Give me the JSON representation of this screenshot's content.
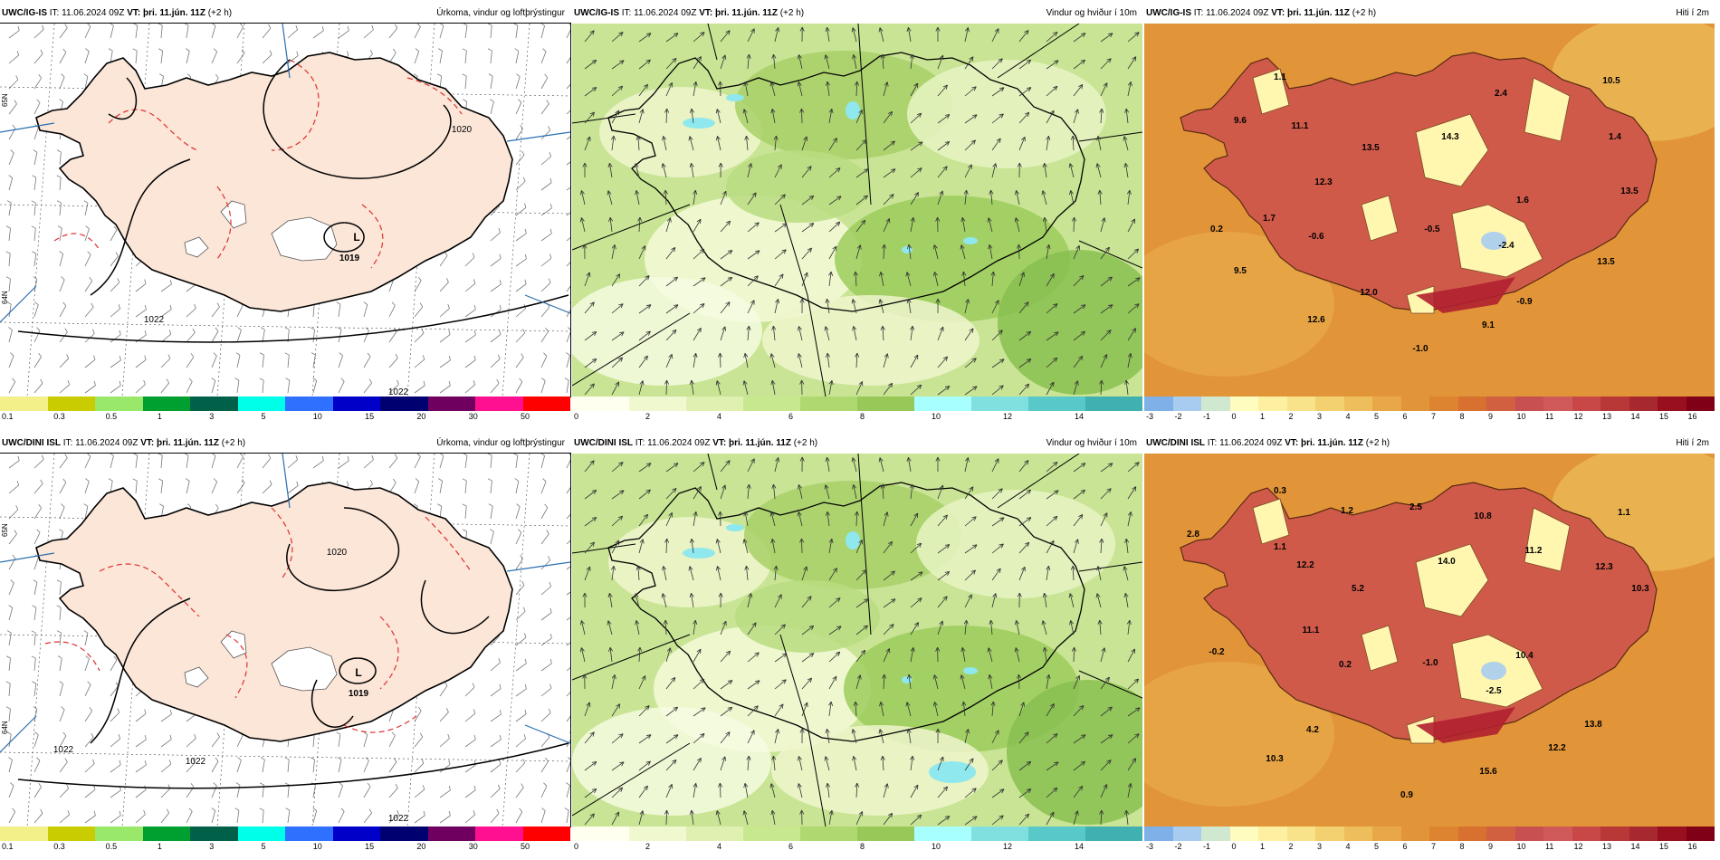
{
  "panels": [
    {
      "model": "UWC/IG-IS",
      "it_label": "IT:",
      "it_time": "11.06.2024 09Z",
      "vt_label": "VT:",
      "vt_time": "þri. 11.jún. 11Z",
      "lead": "(+2 h)",
      "field": "Úrkoma, vindur og loftþrýstingur",
      "map_labels": [
        "1020",
        "1019",
        "L",
        "1022",
        "1022"
      ],
      "lat_labels": [
        "65N",
        "64N"
      ],
      "legend": [
        "0.1",
        "0.3",
        "0.5",
        "1",
        "3",
        "5",
        "10",
        "15",
        "20",
        "30",
        "50"
      ]
    },
    {
      "model": "UWC/IG-IS",
      "it_label": "IT:",
      "it_time": "11.06.2024 09Z",
      "vt_label": "VT:",
      "vt_time": "þri. 11.jún. 11Z",
      "lead": "(+2 h)",
      "field": "Vindur og hviður í 10m",
      "legend": [
        "0",
        "2",
        "4",
        "6",
        "8",
        "10",
        "12",
        "14"
      ]
    },
    {
      "model": "UWC/IG-IS",
      "it_label": "IT:",
      "it_time": "11.06.2024 09Z",
      "vt_label": "VT:",
      "vt_time": "þri. 11.jún. 11Z",
      "lead": "(+2 h)",
      "field": "Hiti í 2m",
      "temps": [
        "1.1",
        "9.6",
        "11.1",
        "2.4",
        "10.5",
        "13.5",
        "14.3",
        "1.4",
        "12.3",
        "13.5",
        "1.7",
        "0.2",
        "1.6",
        "-0.6",
        "-0.5",
        "-2.4",
        "9.5",
        "13.5",
        "12.0",
        "-0.9",
        "12.6",
        "9.1",
        "-1.0"
      ],
      "legend": [
        "-3",
        "-2",
        "-1",
        "0",
        "1",
        "2",
        "3",
        "4",
        "5",
        "6",
        "7",
        "8",
        "9",
        "10",
        "11",
        "12",
        "13",
        "14",
        "15",
        "16"
      ]
    },
    {
      "model": "UWC/DINI ISL",
      "it_label": "IT:",
      "it_time": "11.06.2024 09Z",
      "vt_label": "VT:",
      "vt_time": "þri. 11.jún. 11Z",
      "lead": "(+2 h)",
      "field": "Úrkoma, vindur og loftþrýstingur",
      "map_labels": [
        "1020",
        "1019",
        "L",
        "1022",
        "1022",
        "1022"
      ],
      "lat_labels": [
        "65N",
        "64N"
      ],
      "legend": [
        "0.1",
        "0.3",
        "0.5",
        "1",
        "3",
        "5",
        "10",
        "15",
        "20",
        "30",
        "50"
      ]
    },
    {
      "model": "UWC/DINI ISL",
      "it_label": "IT:",
      "it_time": "11.06.2024 09Z",
      "vt_label": "VT:",
      "vt_time": "þri. 11.jún. 11Z",
      "lead": "(+2 h)",
      "field": "Vindur og hviður í 10m",
      "legend": [
        "0",
        "2",
        "4",
        "6",
        "8",
        "10",
        "12",
        "14"
      ]
    },
    {
      "model": "UWC/DINI ISL",
      "it_label": "IT:",
      "it_time": "11.06.2024 09Z",
      "vt_label": "VT:",
      "vt_time": "þri. 11.jún. 11Z",
      "lead": "(+2 h)",
      "field": "Hiti í 2m",
      "temps": [
        "0.3",
        "2.8",
        "1.1",
        "1.2",
        "2.5",
        "10.8",
        "1.1",
        "12.2",
        "14.0",
        "11.2",
        "12.3",
        "10.3",
        "5.2",
        "11.1",
        "-0.2",
        "0.2",
        "-1.0",
        "10.4",
        "-2.5",
        "4.2",
        "13.8",
        "12.2",
        "10.3",
        "15.6",
        "0.9"
      ],
      "legend": [
        "-3",
        "-2",
        "-1",
        "0",
        "1",
        "2",
        "3",
        "4",
        "5",
        "6",
        "7",
        "8",
        "9",
        "10",
        "11",
        "12",
        "13",
        "14",
        "15",
        "16"
      ]
    }
  ],
  "colors": {
    "precip_legend": [
      "#f3f08a",
      "#c8cc00",
      "#9ae86a",
      "#00a030",
      "#006048",
      "#00ffe8",
      "#3070ff",
      "#0000c8",
      "#000070",
      "#700060",
      "#ff1090",
      "#ff0000"
    ],
    "wind_legend": [
      "#fffff0",
      "#f0f8d0",
      "#dff0b0",
      "#c8e890",
      "#b0d870",
      "#98c858",
      "#a8ffff",
      "#80e0e0",
      "#58c8c8",
      "#40b0b0"
    ],
    "temp_legend": [
      "#7fb0e8",
      "#a8ccf0",
      "#d0e8d0",
      "#fffcc0",
      "#fdf0a0",
      "#f8e28a",
      "#f3d070",
      "#eebd5c",
      "#e8a848",
      "#e29538",
      "#dd8430",
      "#d87030",
      "#d06040",
      "#c85050",
      "#d05a5a",
      "#c84848",
      "#b83838",
      "#a82830",
      "#981020",
      "#800018"
    ],
    "land_precip": "#fbe6d8",
    "isobar": "#000000",
    "rain_contour": "#e03030",
    "wind_field": "#c8e494",
    "temp_sea": "#e29538",
    "temp_land": "#d05a4a",
    "temp_high": "#fff6b0"
  }
}
